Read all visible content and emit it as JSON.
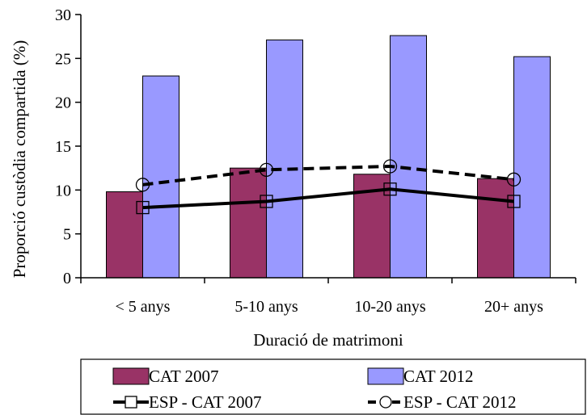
{
  "chart_data": {
    "type": "bar",
    "categories": [
      "< 5 anys",
      "5-10 anys",
      "10-20 anys",
      "20+ anys"
    ],
    "xlabel": "Duració de matrimoni",
    "ylabel": "Proporció custòdia compartida (%)",
    "ylim": [
      0,
      30
    ],
    "yticks": [
      0,
      5,
      10,
      15,
      20,
      25,
      30
    ],
    "grid": false,
    "legend_position": "bottom",
    "bar_series": [
      {
        "name": "CAT 2007",
        "values": [
          9.8,
          12.5,
          11.8,
          11.3
        ],
        "color": "#993366"
      },
      {
        "name": "CAT 2012",
        "values": [
          23.0,
          27.1,
          27.6,
          25.2
        ],
        "color": "#9999FF"
      }
    ],
    "line_series": [
      {
        "name": "ESP - CAT 2007",
        "values": [
          8.0,
          8.7,
          10.1,
          8.7
        ],
        "color": "#000000",
        "style": "solid",
        "marker": "square"
      },
      {
        "name": "ESP - CAT 2012",
        "values": [
          10.6,
          12.3,
          12.7,
          11.2
        ],
        "color": "#000000",
        "style": "dashed",
        "marker": "circle"
      }
    ]
  }
}
